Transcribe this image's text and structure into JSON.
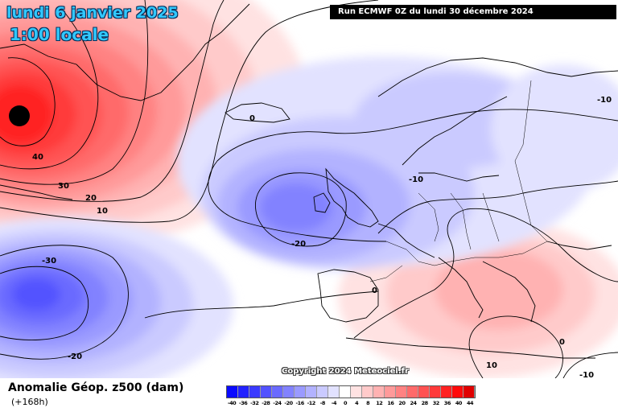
{
  "header": {
    "date": "lundi 6 janvier 2025",
    "time": "1:00 locale",
    "run": "Run ECMWF 0Z du lundi 30 décembre 2024"
  },
  "footer": {
    "parameter": "Anomalie Géop. z500 (dam)",
    "lead_time": "(+168h)",
    "copyright": "Copyright 2024 Meteociel.fr"
  },
  "legend": {
    "labels": [
      "-40",
      "-36",
      "-32",
      "-28",
      "-24",
      "-20",
      "-16",
      "-12",
      "-8",
      "-4",
      "0",
      "4",
      "8",
      "12",
      "16",
      "20",
      "24",
      "28",
      "32",
      "36",
      "40",
      "44"
    ],
    "colors": [
      "#0a0aff",
      "#2222ff",
      "#3a3aff",
      "#5252ff",
      "#6a6aff",
      "#8282ff",
      "#9a9aff",
      "#b2b2ff",
      "#cacaff",
      "#e2e2ff",
      "#ffffff",
      "#ffe2e2",
      "#ffcaca",
      "#ffb2b2",
      "#ff9a9a",
      "#ff8282",
      "#ff6a6a",
      "#ff5252",
      "#ff3a3a",
      "#ff2222",
      "#ff0a0a",
      "#e00000"
    ]
  },
  "contour_labels": [
    {
      "id": "c-40",
      "text": "40"
    },
    {
      "id": "c-30n",
      "text": "30"
    },
    {
      "id": "c-20n",
      "text": "20"
    },
    {
      "id": "c-10n",
      "text": "10"
    },
    {
      "id": "c-0a",
      "text": "0"
    },
    {
      "id": "c-m10a",
      "text": "-10"
    },
    {
      "id": "c-m20a",
      "text": "-20"
    },
    {
      "id": "c-m30a",
      "text": "-30"
    },
    {
      "id": "c-m20b",
      "text": "-20"
    },
    {
      "id": "c-0b",
      "text": "0"
    },
    {
      "id": "c-m10b",
      "text": "-10"
    },
    {
      "id": "c-10b",
      "text": "10"
    },
    {
      "id": "c-0c",
      "text": "0"
    },
    {
      "id": "c-m10c",
      "text": "-10"
    }
  ]
}
